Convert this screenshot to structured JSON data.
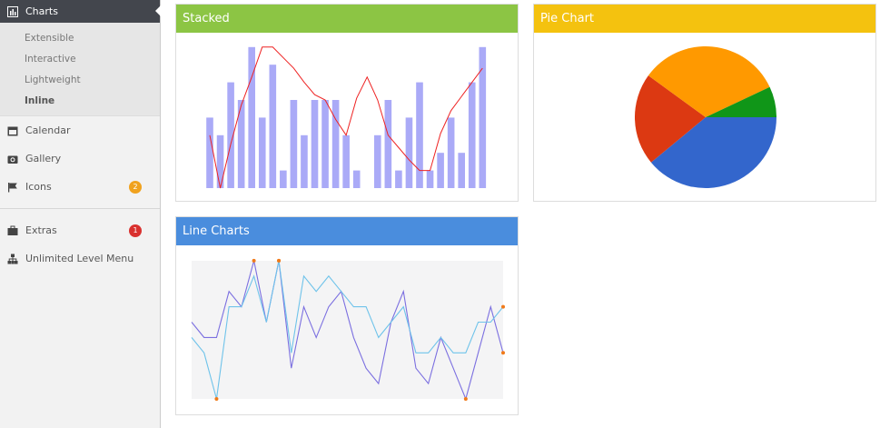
{
  "sidebar": {
    "items": [
      {
        "label": "Charts",
        "children": [
          "Extensible",
          "Interactive",
          "Lightweight",
          "Inline"
        ]
      },
      {
        "label": "Calendar"
      },
      {
        "label": "Gallery"
      },
      {
        "label": "Icons",
        "badge": 2
      },
      {
        "label": "Extras",
        "badge": 1
      },
      {
        "label": "Unlimited Level Menu"
      }
    ]
  },
  "panels": [
    {
      "title": "Stacked",
      "color": "#8cc544",
      "chart": {
        "type": "bar-line",
        "bar_color": "#aaaaf7",
        "line_color": "#ee2222",
        "values": [
          4,
          3,
          6,
          5,
          8,
          4,
          7,
          1,
          5,
          3,
          5,
          5,
          5,
          3,
          1,
          0,
          3,
          5,
          1,
          4,
          6,
          1,
          2,
          4,
          2,
          6,
          8
        ],
        "line": [
          3,
          0,
          2.5,
          4.7,
          6.3,
          8,
          8,
          7.4,
          6.8,
          6,
          5.3,
          5,
          3.9,
          3,
          5.1,
          6.3,
          5,
          3,
          2.3,
          1.6,
          1,
          1,
          3.1,
          4.4,
          5.2,
          6,
          6.8
        ]
      }
    },
    {
      "title": "Pie Chart",
      "color": "#f4c20f",
      "chart": {
        "type": "pie",
        "values": [
          39,
          21,
          33,
          7
        ],
        "colors": [
          "#3366cc",
          "#dc3912",
          "#ff9900",
          "#109618"
        ]
      }
    },
    {
      "title": "Line Charts",
      "color": "#4a8ddd",
      "chart": {
        "type": "line",
        "series": [
          {
            "color": "#7b6fe0",
            "values": [
              5,
              4,
              4,
              7,
              6,
              9,
              5,
              9,
              2,
              6,
              4,
              6,
              7,
              4,
              2,
              1,
              5,
              7,
              2,
              1,
              4,
              2,
              0,
              3,
              6,
              3
            ]
          },
          {
            "color": "#6fc3ea",
            "values": [
              4,
              3,
              0,
              6,
              6,
              8,
              5,
              9,
              3,
              8,
              7,
              8,
              7,
              6,
              6,
              4,
              5,
              6,
              3,
              3,
              4,
              3,
              3,
              5,
              5,
              6
            ]
          }
        ]
      }
    }
  ]
}
